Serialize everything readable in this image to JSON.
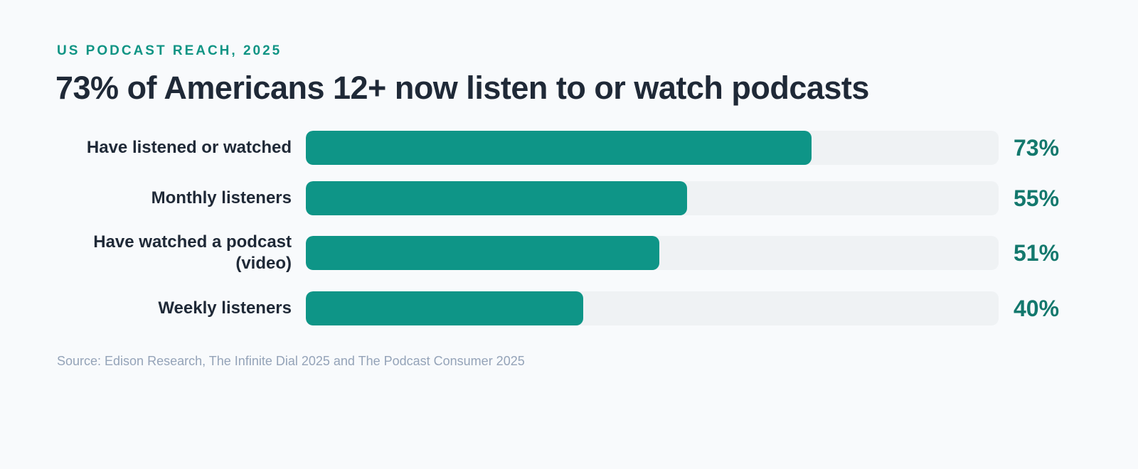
{
  "eyebrow": "US PODCAST REACH, 2025",
  "headline": "73% of Americans 12+ now listen to or watch podcasts",
  "source": "Source: Edison Research, The Infinite Dial 2025 and The Podcast Consumer 2025",
  "colors": {
    "bar_fill": "#0e9587",
    "bar_track": "#eff2f4",
    "value_text": "#13786d",
    "eyebrow_text": "#0f9484",
    "label_text": "#1f2937",
    "source_text": "#94a3b8"
  },
  "chart_data": {
    "type": "bar",
    "orientation": "horizontal",
    "categories": [
      "Have listened or watched",
      "Monthly listeners",
      "Have watched a podcast (video)",
      "Weekly listeners"
    ],
    "values": [
      73,
      55,
      51,
      40
    ],
    "value_labels": [
      "73%",
      "55%",
      "51%",
      "40%"
    ],
    "xlim": [
      0,
      100
    ],
    "grid": false,
    "legend": "none"
  }
}
